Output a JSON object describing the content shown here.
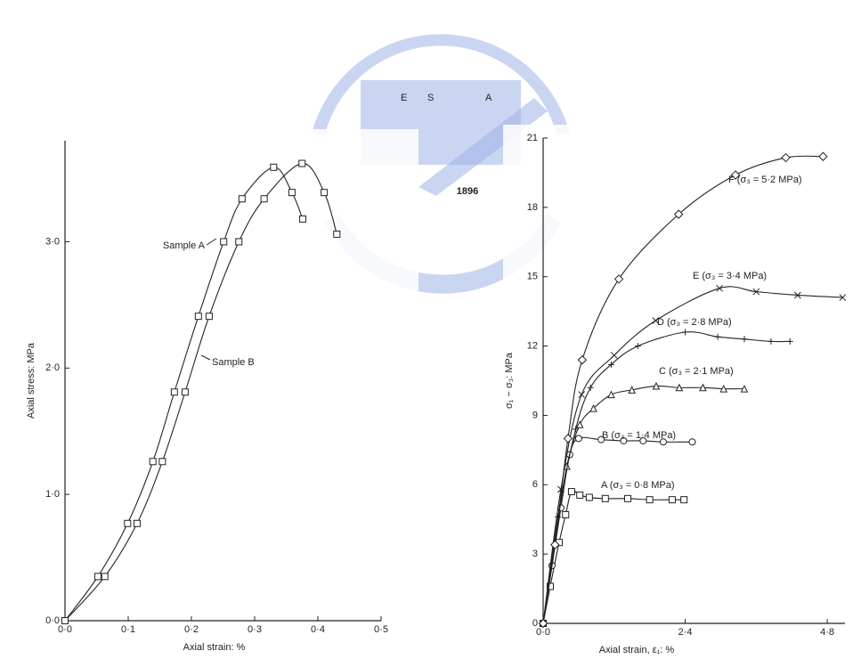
{
  "watermark": {
    "letters": [
      "E",
      "S",
      "A"
    ],
    "year": "1896"
  },
  "chart_data": [
    {
      "type": "line",
      "xlabel": "Axial strain: %",
      "ylabel": "Axial stress: MPa",
      "xlim": [
        0,
        0.5
      ],
      "ylim": [
        0,
        3.8
      ],
      "xticks": [
        {
          "value": 0,
          "label": "0·0"
        },
        {
          "value": 0.1,
          "label": "0·1"
        },
        {
          "value": 0.2,
          "label": "0·2"
        },
        {
          "value": 0.3,
          "label": "0·3"
        },
        {
          "value": 0.4,
          "label": "0·4"
        },
        {
          "value": 0.5,
          "label": "0·5"
        }
      ],
      "yticks": [
        {
          "value": 0,
          "label": "0·0"
        },
        {
          "value": 1,
          "label": "1·0"
        },
        {
          "value": 2,
          "label": "2·0"
        },
        {
          "value": 3,
          "label": "3·0"
        }
      ],
      "series": [
        {
          "name": "Sample A",
          "color": "#222222",
          "marker": "square",
          "x": [
            0,
            0.052,
            0.099,
            0.139,
            0.173,
            0.211,
            0.251,
            0.28,
            0.33,
            0.359,
            0.376
          ],
          "values": [
            0,
            0.35,
            0.77,
            1.26,
            1.81,
            2.41,
            3.0,
            3.34,
            3.59,
            3.39,
            3.18
          ]
        },
        {
          "name": "Sample B",
          "color": "#222222",
          "marker": "square",
          "x": [
            0,
            0.063,
            0.114,
            0.154,
            0.19,
            0.228,
            0.275,
            0.315,
            0.375,
            0.41,
            0.43
          ],
          "values": [
            0,
            0.35,
            0.77,
            1.26,
            1.81,
            2.41,
            3.0,
            3.34,
            3.62,
            3.39,
            3.06
          ]
        }
      ]
    },
    {
      "type": "line",
      "xlabel": "Axial strain, ε₁: %",
      "ylabel": "σ₁ − σ₃: MPa",
      "xlim": [
        0,
        5.1
      ],
      "ylim": [
        0,
        21
      ],
      "xticks": [
        {
          "value": 0,
          "label": "0·0"
        },
        {
          "value": 2.4,
          "label": "2·4"
        },
        {
          "value": 4.8,
          "label": "4·8"
        }
      ],
      "yticks": [
        0,
        3,
        6,
        9,
        12,
        15,
        18,
        21
      ],
      "series": [
        {
          "name": "A (σ₃ = 0·8 MPa)",
          "color": "#222222",
          "marker": "square",
          "x": [
            0,
            0.12,
            0.27,
            0.38,
            0.48,
            0.62,
            0.78,
            1.05,
            1.43,
            1.8,
            2.18,
            2.38
          ],
          "values": [
            0,
            1.6,
            3.5,
            4.7,
            5.7,
            5.55,
            5.45,
            5.4,
            5.4,
            5.35,
            5.35,
            5.35
          ]
        },
        {
          "name": "B (σ₃ = 1·4 MPa)",
          "color": "#222222",
          "marker": "circle",
          "x": [
            0,
            0.15,
            0.3,
            0.45,
            0.6,
            0.98,
            1.36,
            1.69,
            2.03,
            2.52
          ],
          "values": [
            0,
            2.5,
            5.0,
            7.3,
            8.0,
            7.95,
            7.9,
            7.9,
            7.85,
            7.85
          ]
        },
        {
          "name": "C (σ₃ = 2·1 MPa)",
          "color": "#222222",
          "marker": "triangle",
          "x": [
            0,
            0.2,
            0.4,
            0.62,
            0.85,
            1.15,
            1.5,
            1.91,
            2.3,
            2.7,
            3.05,
            3.4
          ],
          "values": [
            0,
            3.5,
            6.8,
            8.6,
            9.3,
            9.9,
            10.1,
            10.27,
            10.2,
            10.2,
            10.15,
            10.15
          ]
        },
        {
          "name": "D (σ₃ = 2·8 MPa)",
          "color": "#222222",
          "marker": "plus",
          "x": [
            0,
            0.25,
            0.55,
            0.8,
            1.15,
            1.6,
            2.4,
            2.95,
            3.4,
            3.85,
            4.17
          ],
          "values": [
            0,
            4.6,
            8.4,
            10.2,
            11.2,
            12.0,
            12.6,
            12.4,
            12.3,
            12.2,
            12.2
          ]
        },
        {
          "name": "E (σ₃ = 3·4 MPa)",
          "color": "#222222",
          "marker": "cross",
          "x": [
            0,
            0.3,
            0.65,
            1.2,
            1.9,
            2.98,
            3.6,
            4.3,
            5.06
          ],
          "values": [
            0,
            5.8,
            9.9,
            11.6,
            13.1,
            14.5,
            14.35,
            14.2,
            14.1
          ]
        },
        {
          "name": "F (σ₃ = 5·2 MPa)",
          "color": "#222222",
          "marker": "diamond",
          "x": [
            0,
            0.2,
            0.42,
            0.66,
            1.28,
            2.29,
            3.25,
            4.1,
            4.73
          ],
          "values": [
            0,
            3.4,
            8.0,
            11.4,
            14.9,
            17.7,
            19.4,
            20.15,
            20.2
          ]
        }
      ]
    }
  ]
}
